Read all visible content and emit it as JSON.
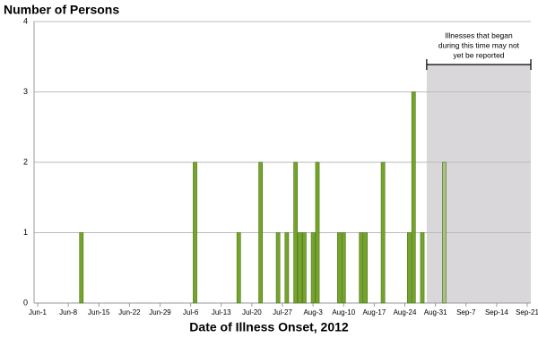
{
  "chart_data": {
    "type": "bar",
    "title": "Number of Persons",
    "xlabel": "Date of Illness Onset, 2012",
    "x": [
      "Jun-11",
      "Jul-7",
      "Jul-17",
      "Jul-22",
      "Jul-26",
      "Jul-28",
      "Jul-30",
      "Jul-31",
      "Aug-1",
      "Aug-3",
      "Aug-4",
      "Aug-9",
      "Aug-10",
      "Aug-14",
      "Aug-15",
      "Aug-19",
      "Aug-25",
      "Aug-26",
      "Aug-28",
      "Sep-2"
    ],
    "values": [
      1,
      2,
      1,
      2,
      1,
      1,
      2,
      1,
      1,
      1,
      2,
      1,
      1,
      1,
      1,
      2,
      1,
      3,
      1,
      2
    ],
    "colors": [
      "#74a52a",
      "#74a52a",
      "#74a52a",
      "#74a52a",
      "#74a52a",
      "#74a52a",
      "#74a52a",
      "#74a52a",
      "#74a52a",
      "#74a52a",
      "#74a52a",
      "#74a52a",
      "#74a52a",
      "#74a52a",
      "#74a52a",
      "#74a52a",
      "#74a52a",
      "#74a52a",
      "#74a52a",
      "#a9c08a"
    ],
    "xlim": [
      "Jun-1",
      "Sep-21"
    ],
    "xticks": [
      "Jun-1",
      "Jun-8",
      "Jun-15",
      "Jun-22",
      "Jun-29",
      "Jul-6",
      "Jul-13",
      "Jul-20",
      "Jul-27",
      "Aug-3",
      "Aug-10",
      "Aug-17",
      "Aug-24",
      "Aug-31",
      "Sep-7",
      "Sep-14",
      "Sep-21"
    ],
    "ylim": [
      0,
      4
    ],
    "yticks": [
      0,
      1,
      2,
      3,
      4
    ],
    "grid": true,
    "shaded_from": "Aug-29",
    "annotation": [
      "Illnesses that began",
      "during this time may not",
      "yet be reported"
    ]
  }
}
